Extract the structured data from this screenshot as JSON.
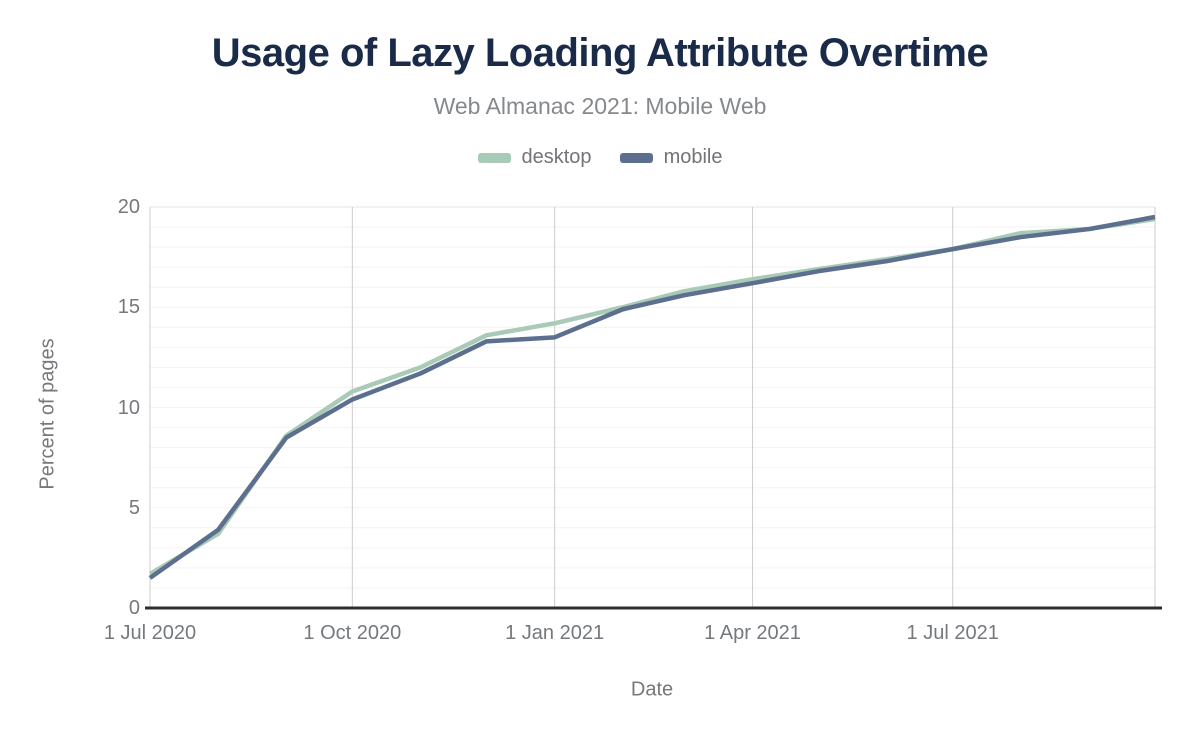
{
  "header": {
    "title": "Usage of Lazy Loading Attribute Overtime",
    "subtitle": "Web Almanac 2021: Mobile Web"
  },
  "colors": {
    "title": "#1a2b49",
    "subtitle_text": "#85888c",
    "axis_text": "#75787c",
    "desktop_series": "#a9cab6",
    "mobile_series": "#5c6f8e",
    "major_gridline": "#cccccc",
    "minor_gridline": "#f3f3f3",
    "top_border": "#e4e4e4",
    "axis_line": "#2d2d2d"
  },
  "chart_data": {
    "type": "line",
    "title": "Usage of Lazy Loading Attribute Overtime",
    "subtitle": "Web Almanac 2021: Mobile Web",
    "xlabel": "Date",
    "ylabel": "Percent of pages",
    "ylim": [
      0,
      20
    ],
    "yticks": [
      0,
      5,
      10,
      15,
      20
    ],
    "y_minor_grid_step": 1,
    "grid": true,
    "legend_position": "top",
    "x": [
      "1 Jul 2020",
      "1 Aug 2020",
      "1 Sep 2020",
      "1 Oct 2020",
      "1 Nov 2020",
      "1 Dec 2020",
      "1 Jan 2021",
      "1 Feb 2021",
      "1 Mar 2021",
      "1 Apr 2021",
      "1 May 2021",
      "1 Jun 2021",
      "1 Jul 2021",
      "1 Aug 2021",
      "1 Sep 2021",
      "1 Oct 2021"
    ],
    "xtick_labels": [
      "1 Jul 2020",
      "1 Oct 2020",
      "1 Jan 2021",
      "1 Apr 2021",
      "1 Jul 2021"
    ],
    "xtick_indices": [
      0,
      3,
      6,
      9,
      12
    ],
    "x_gridline_indices": [
      0,
      3,
      6,
      9,
      12,
      15
    ],
    "series": [
      {
        "name": "desktop",
        "color": "#a9cab6",
        "values": [
          1.7,
          3.7,
          8.6,
          10.8,
          12.0,
          13.6,
          14.2,
          15.0,
          15.8,
          16.4,
          16.9,
          17.4,
          17.9,
          18.7,
          18.9,
          19.4
        ]
      },
      {
        "name": "mobile",
        "color": "#5c6f8e",
        "values": [
          1.5,
          3.9,
          8.5,
          10.4,
          11.7,
          13.3,
          13.5,
          14.9,
          15.6,
          16.2,
          16.8,
          17.3,
          17.9,
          18.5,
          18.9,
          19.5
        ]
      }
    ]
  }
}
